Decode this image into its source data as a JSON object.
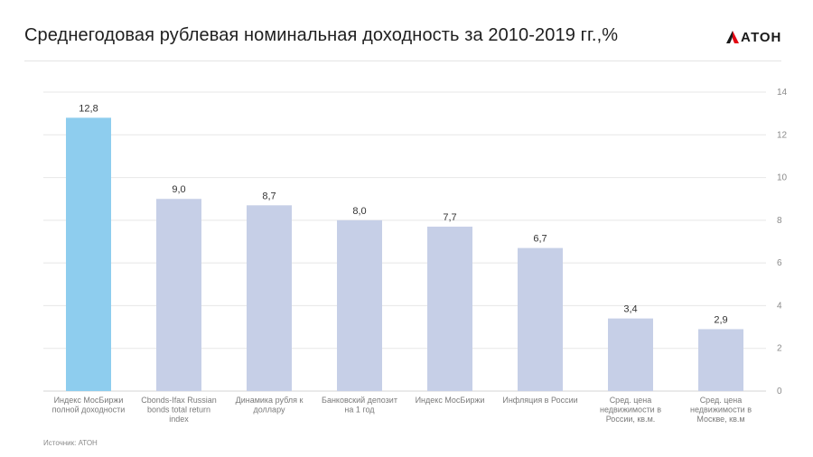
{
  "header": {
    "title": "Среднегодовая рублевая номинальная доходность за 2010-2019 гг.,%",
    "logo_text": "АТОН",
    "brand_color": "#e30613"
  },
  "footer": {
    "source": "Источник: АТОН"
  },
  "chart_data": {
    "type": "bar",
    "categories": [
      [
        "Индекс МосБиржи",
        "полной доходности"
      ],
      [
        "Cbonds-Ifax Russian",
        "bonds total return",
        "index"
      ],
      [
        "Динамика рубля к",
        "доллару"
      ],
      [
        "Банковский депозит",
        "на 1 год"
      ],
      [
        "Индекс МосБиржи"
      ],
      [
        "Инфляция в России"
      ],
      [
        "Сред. цена",
        "недвижимости в",
        "России, кв.м."
      ],
      [
        "Сред. цена",
        "недвижимости в",
        "Москве, кв.м"
      ]
    ],
    "values": [
      12.8,
      9.0,
      8.7,
      8.0,
      7.7,
      6.7,
      3.4,
      2.9
    ],
    "data_labels": [
      "12,8",
      "9,0",
      "8,7",
      "8,0",
      "7,7",
      "6,7",
      "3,4",
      "2,9"
    ],
    "bar_colors": [
      "#8ecdee",
      "#c6cfe7",
      "#c6cfe7",
      "#c6cfe7",
      "#c6cfe7",
      "#c6cfe7",
      "#c6cfe7",
      "#c6cfe7"
    ],
    "ylim": [
      0,
      14
    ],
    "yticks": [
      0,
      2,
      4,
      6,
      8,
      10,
      12,
      14
    ],
    "y_axis_position": "right",
    "grid": true
  }
}
